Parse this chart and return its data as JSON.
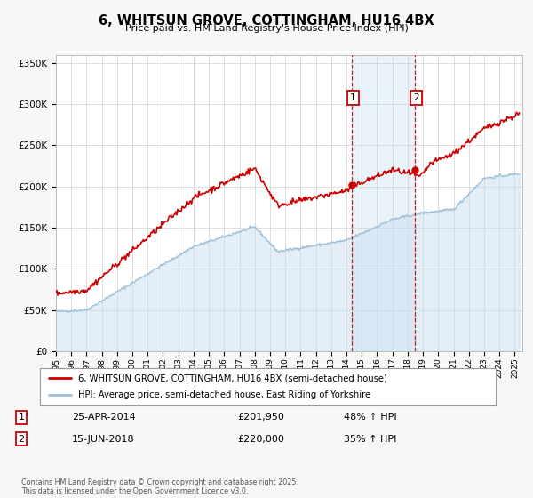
{
  "title": "6, WHITSUN GROVE, COTTINGHAM, HU16 4BX",
  "subtitle": "Price paid vs. HM Land Registry's House Price Index (HPI)",
  "legend_line1": "6, WHITSUN GROVE, COTTINGHAM, HU16 4BX (semi-detached house)",
  "legend_line2": "HPI: Average price, semi-detached house, East Riding of Yorkshire",
  "sale1_date": "25-APR-2014",
  "sale1_price": "£201,950",
  "sale1_hpi": "48% ↑ HPI",
  "sale1_year": 2014.32,
  "sale1_value": 201950,
  "sale2_date": "15-JUN-2018",
  "sale2_price": "£220,000",
  "sale2_hpi": "35% ↑ HPI",
  "sale2_year": 2018.46,
  "sale2_value": 220000,
  "footer": "Contains HM Land Registry data © Crown copyright and database right 2025.\nThis data is licensed under the Open Government Licence v3.0.",
  "hpi_color": "#9dbfd8",
  "hpi_fill_color": "#c8dff0",
  "price_color": "#cc0000",
  "background_color": "#f7f7f7",
  "plot_bg_color": "#ffffff",
  "shade_color": "#d8eaf7",
  "ylim": [
    0,
    360000
  ],
  "xlim_start": 1995,
  "xlim_end": 2025.5
}
